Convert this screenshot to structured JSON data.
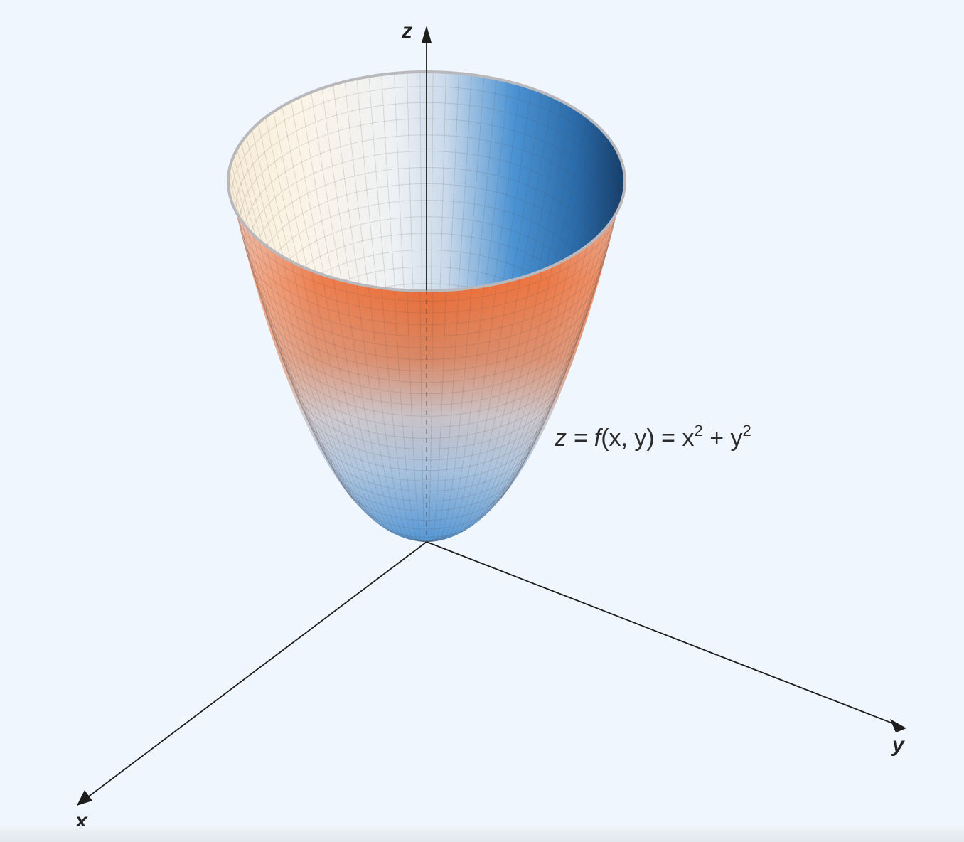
{
  "figure": {
    "equation": {
      "lhs": "z = ",
      "f": "f",
      "args": "(x, y) = x",
      "exp1": "2",
      "plus": " + y",
      "exp2": "2"
    },
    "axes": {
      "x": "x",
      "y": "y",
      "z": "z"
    },
    "colors": {
      "background": "#f0f6fd",
      "surface_warm": "#e8622a",
      "surface_cool": "#3f8dd0",
      "surface_light": "#faf3e6",
      "surface_dark_blue": "#1c4d80",
      "axis": "#1d1d1d"
    }
  }
}
